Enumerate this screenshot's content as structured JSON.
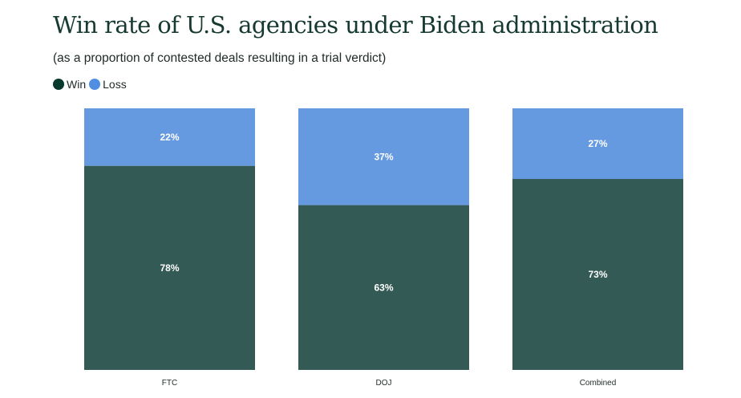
{
  "title": "Win rate of U.S. agencies under Biden administration",
  "subtitle": "(as a proportion of contested deals resulting in a trial verdict)",
  "legend": [
    {
      "label": "Win",
      "color": "#08392d"
    },
    {
      "label": "Loss",
      "color": "#4f8ee0"
    }
  ],
  "chart_data": {
    "type": "bar",
    "stacked": true,
    "categories": [
      "FTC",
      "DOJ",
      "Combined"
    ],
    "series": [
      {
        "name": "Win",
        "values": [
          78,
          63,
          73
        ],
        "labels": [
          "78%",
          "63%",
          "73%"
        ],
        "color": "#335a54"
      },
      {
        "name": "Loss",
        "values": [
          22,
          37,
          27
        ],
        "labels": [
          "22%",
          "37%",
          "27%"
        ],
        "color": "#6599e0"
      }
    ],
    "ylim": [
      0,
      100
    ],
    "grid": false,
    "legend_position": "top-left"
  }
}
